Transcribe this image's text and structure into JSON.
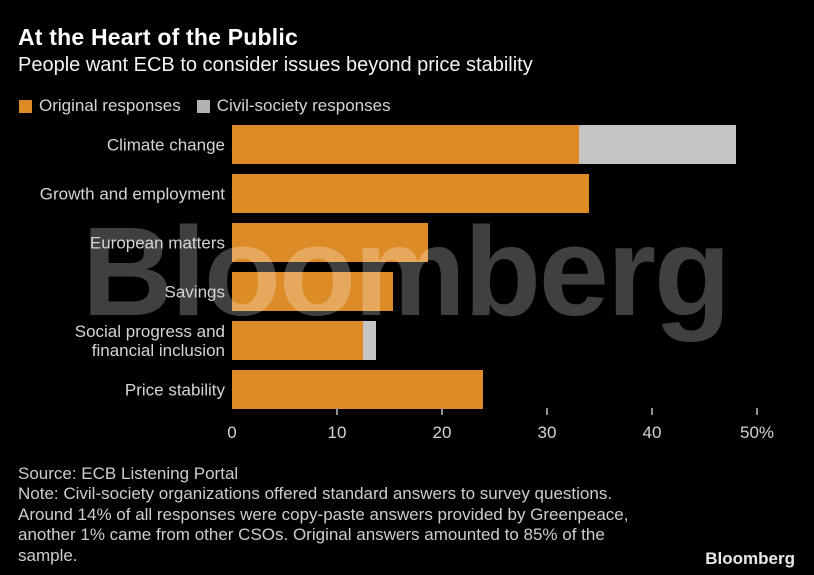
{
  "header": {
    "title": "At the Heart of the Public",
    "subtitle": "People want ECB to consider issues beyond price stability"
  },
  "chart_data": {
    "type": "bar",
    "orientation": "horizontal",
    "stacked": true,
    "categories": [
      "Climate change",
      "Growth and employment",
      "European matters",
      "Savings",
      "Social progress and\nfinancial inclusion",
      "Price stability"
    ],
    "series": [
      {
        "name": "Original responses",
        "color": "#DC8B27",
        "values": [
          33,
          34,
          18.7,
          15.3,
          12.5,
          23.9
        ]
      },
      {
        "name": "Civil-society responses",
        "color": "#C5C4C2",
        "values": [
          15,
          0,
          0,
          0,
          1.2,
          0
        ]
      }
    ],
    "xlim": [
      0,
      50
    ],
    "xticks": [
      0,
      10,
      20,
      30,
      40,
      50
    ],
    "xtick_labels": [
      "0",
      "10",
      "20",
      "30",
      "40",
      "50%"
    ],
    "legend_position": "top",
    "grid": false,
    "watermark": "Bloomberg"
  },
  "legend": {
    "swatch_colors": [
      "#DC8B27",
      "#B3B2B0"
    ]
  },
  "footer": {
    "source": "Source: ECB Listening Portal",
    "note_lines": [
      "Note: Civil-society organizations offered standard answers to survey questions.",
      "Around 14% of all responses were copy-paste answers provided by Greenpeace,",
      "another 1% came from other CSOs. Original answers amounted to 85% of the",
      "sample."
    ],
    "logo": "Bloomberg"
  },
  "colors": {
    "background": "#000000",
    "original_orange": "#DC8B27",
    "civil_society_gray": "#C5C4C2",
    "axis_text": "#D5D4D1",
    "title_white": "#FFFFFF"
  }
}
